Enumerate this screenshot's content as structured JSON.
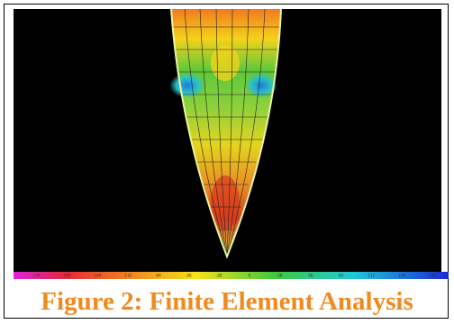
{
  "figure": {
    "caption": "Figure 2: Finite Element Analysis",
    "colorbar_labels": [
      "-196",
      "-168",
      "-140",
      "-112",
      "-84",
      "-56",
      "-28",
      "0",
      "28",
      "56",
      "84",
      "112",
      "140",
      "168"
    ]
  }
}
